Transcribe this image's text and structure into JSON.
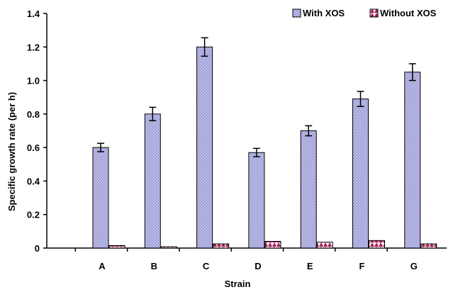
{
  "chart_data": {
    "type": "bar",
    "title": "",
    "xlabel": "Strain",
    "ylabel": "Specific growth rate (per h)",
    "categories": [
      "A",
      "B",
      "C",
      "D",
      "E",
      "F",
      "G"
    ],
    "ylim": [
      0,
      1.4
    ],
    "yticks": [
      "0",
      "0.2",
      "0.4",
      "0.6",
      "0.8",
      "1.0",
      "1.2",
      "1.4"
    ],
    "grid": false,
    "legend_position": "top-right",
    "series": [
      {
        "name": "With XOS",
        "values": [
          0.6,
          0.8,
          1.2,
          0.57,
          0.7,
          0.89,
          1.05
        ],
        "errors": [
          0.025,
          0.04,
          0.055,
          0.025,
          0.03,
          0.045,
          0.05
        ],
        "color": "#b8b8e8",
        "pattern_color": "#6a6ab0"
      },
      {
        "name": "Without XOS",
        "values": [
          0.015,
          0.008,
          0.025,
          0.04,
          0.035,
          0.045,
          0.025
        ],
        "color": "#fde8f0",
        "pattern_color": "#a0205a"
      }
    ]
  }
}
